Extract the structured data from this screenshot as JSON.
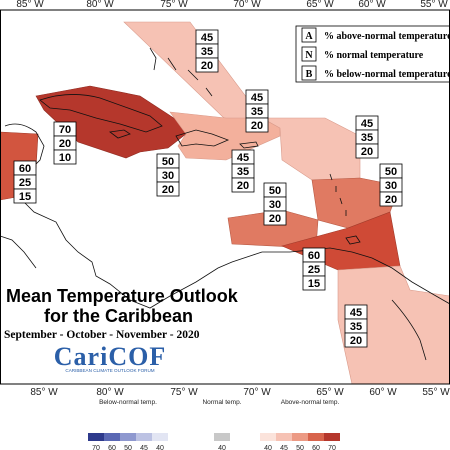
{
  "map": {
    "title_line1": "Mean Temperature Outlook",
    "title_line2": "for the Caribbean",
    "period": "September - October - November - 2020",
    "logo_text": "CariCOF",
    "logo_subtitle": "CARIBBEAN CLIMATE OUTLOOK FORUM",
    "longitude_labels": [
      "85° W",
      "80° W",
      "75° W",
      "70° W",
      "65° W",
      "60° W",
      "55° W"
    ]
  },
  "key": [
    {
      "code": "A",
      "label": "% above-normal temperature"
    },
    {
      "code": "N",
      "label": "% normal temperature"
    },
    {
      "code": "B",
      "label": "% below-normal temperature"
    }
  ],
  "regions": [
    {
      "name": "bahamas",
      "above": "45",
      "normal": "35",
      "below": "20",
      "color": "#f6c2b4"
    },
    {
      "name": "turks-caicos-atlantic",
      "above": "45",
      "normal": "35",
      "below": "20",
      "color": "#f6c2b4"
    },
    {
      "name": "cuba-jamaica",
      "above": "70",
      "normal": "20",
      "below": "10",
      "color": "#b5372c"
    },
    {
      "name": "central-america-belize",
      "above": "60",
      "normal": "25",
      "below": "15",
      "color": "#d2553f"
    },
    {
      "name": "hispaniola",
      "above": "45",
      "normal": "35",
      "below": "20",
      "color": "#f3b09c"
    },
    {
      "name": "western-caribbean-sea",
      "above": "50",
      "normal": "30",
      "below": "20",
      "color": "#ec9a84"
    },
    {
      "name": "puerto-rico-north",
      "above": "45",
      "normal": "35",
      "below": "20",
      "color": "#f6c2b4"
    },
    {
      "name": "eastern-caribbean",
      "above": "50",
      "normal": "30",
      "below": "20",
      "color": "#ec9a84"
    },
    {
      "name": "abc-islands",
      "above": "50",
      "normal": "30",
      "below": "20",
      "color": "#e07a62"
    },
    {
      "name": "trinidad-tobago",
      "above": "60",
      "normal": "25",
      "below": "15",
      "color": "#cf4a36"
    },
    {
      "name": "guianas",
      "above": "45",
      "normal": "35",
      "below": "20",
      "color": "#f6c2b4"
    }
  ],
  "colorbar": {
    "below_title": "Below-normal temp.",
    "normal_title": "Normal temp.",
    "above_title": "Above-normal temp.",
    "below_ticks": [
      "70",
      "60",
      "50",
      "45",
      "40"
    ],
    "normal_ticks": [
      "40"
    ],
    "above_ticks": [
      "40",
      "45",
      "50",
      "60",
      "70"
    ],
    "below_colors": [
      "#2e3a8c",
      "#5a68b4",
      "#8e98cf",
      "#bcc2e3",
      "#e2e5f3"
    ],
    "normal_colors": [
      "#c8c8c8"
    ],
    "above_colors": [
      "#fbe3db",
      "#f6c2b4",
      "#ec9a84",
      "#d8644c",
      "#b5372c"
    ]
  }
}
